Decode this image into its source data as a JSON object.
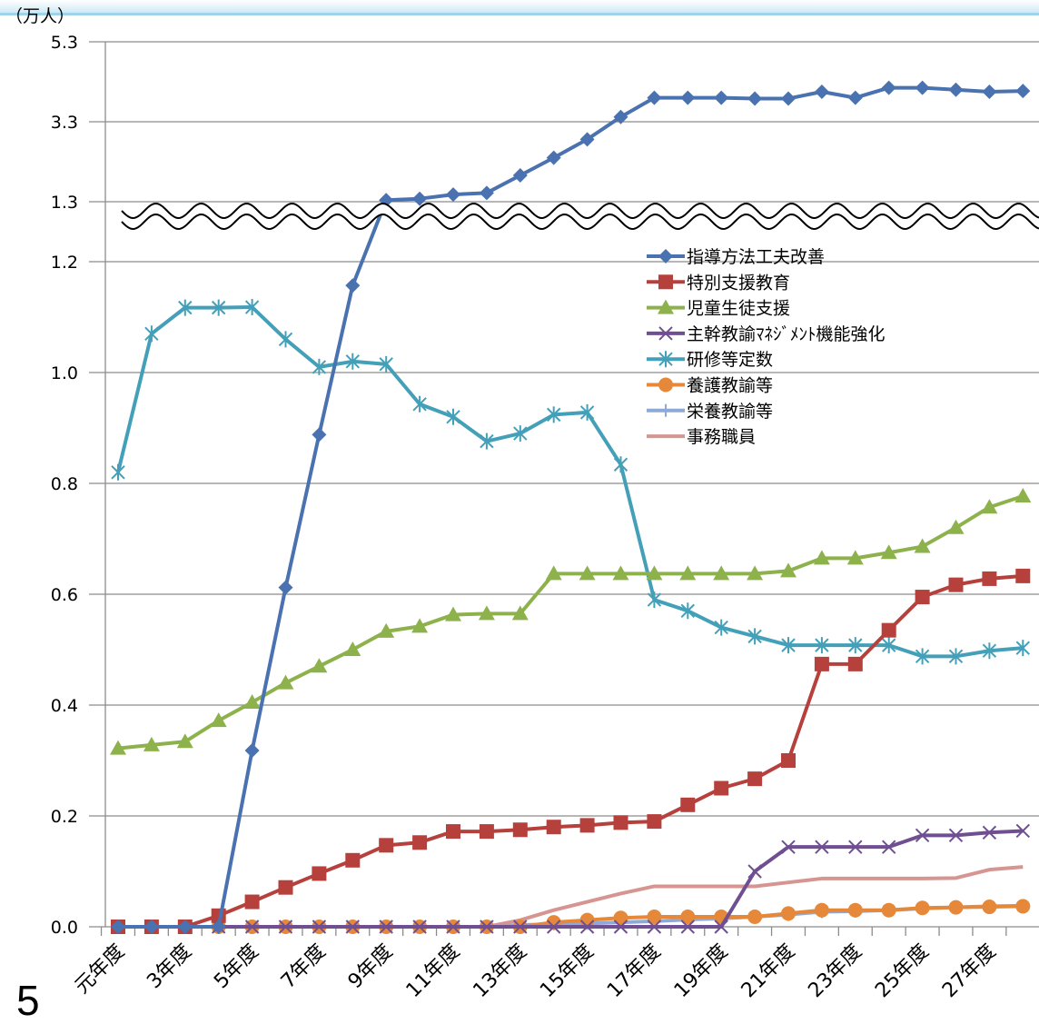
{
  "page_number": "5",
  "chart_data": {
    "type": "line",
    "y_unit": "（万人）",
    "x": [
      "元年度",
      "2年度",
      "3年度",
      "4年度",
      "5年度",
      "6年度",
      "7年度",
      "8年度",
      "9年度",
      "10年度",
      "11年度",
      "12年度",
      "13年度",
      "14年度",
      "15年度",
      "16年度",
      "17年度",
      "18年度",
      "19年度",
      "20年度",
      "21年度",
      "22年度",
      "23年度",
      "24年度",
      "25年度",
      "26年度",
      "27年度",
      "28年度"
    ],
    "x_tick_labels": [
      "元年度",
      "3年度",
      "5年度",
      "7年度",
      "9年度",
      "11年度",
      "13年度",
      "15年度",
      "17年度",
      "19年度",
      "21年度",
      "23年度",
      "25年度",
      "27年度"
    ],
    "y_tick_labels": [
      "0.0",
      "0.2",
      "0.4",
      "0.6",
      "0.8",
      "1.0",
      "1.2",
      "1.3",
      "3.3",
      "5.3"
    ],
    "axis_break": "between 1.2 and 1.3",
    "legend_position": "upper-right",
    "grid": true,
    "series": [
      {
        "name": "指導方法工夫改善",
        "color": "#4a72b0",
        "marker": "diamond",
        "values": [
          0,
          0,
          0,
          0,
          0.318,
          0.612,
          0.888,
          1.157,
          1.34,
          1.375,
          1.48,
          1.52,
          1.96,
          2.4,
          2.86,
          3.42,
          3.9,
          3.9,
          3.9,
          3.88,
          3.88,
          4.05,
          3.9,
          4.15,
          4.15,
          4.1,
          4.05,
          4.07
        ]
      },
      {
        "name": "特別支援教育",
        "color": "#b6403c",
        "marker": "square",
        "values": [
          0,
          0,
          0,
          0.02,
          0.045,
          0.071,
          0.096,
          0.12,
          0.147,
          0.152,
          0.172,
          0.172,
          0.175,
          0.18,
          0.183,
          0.188,
          0.19,
          0.22,
          0.25,
          0.267,
          0.3,
          0.474,
          0.474,
          0.535,
          0.595,
          0.617,
          0.628,
          0.633
        ]
      },
      {
        "name": "児童生徒支援",
        "color": "#8db24b",
        "marker": "triangle",
        "values": [
          0.322,
          0.328,
          0.334,
          0.372,
          0.405,
          0.44,
          0.47,
          0.5,
          0.533,
          0.542,
          0.563,
          0.565,
          0.565,
          0.637,
          0.637,
          0.637,
          0.637,
          0.637,
          0.637,
          0.637,
          0.642,
          0.665,
          0.665,
          0.675,
          0.686,
          0.72,
          0.757,
          0.777
        ]
      },
      {
        "name": "主幹教諭ﾏﾈｼﾞﾒﾝﾄ機能強化",
        "color": "#6f4f92",
        "marker": "x",
        "values": [
          0,
          0,
          0,
          0,
          0,
          0,
          0,
          0,
          0,
          0,
          0,
          0,
          0,
          0,
          0,
          0,
          0,
          0,
          0,
          0.1,
          0.144,
          0.144,
          0.144,
          0.144,
          0.165,
          0.165,
          0.17,
          0.173
        ]
      },
      {
        "name": "研修等定数",
        "color": "#44a0b8",
        "marker": "star",
        "values": [
          0.82,
          1.07,
          1.117,
          1.117,
          1.118,
          1.06,
          1.01,
          1.02,
          1.015,
          0.943,
          0.92,
          0.876,
          0.89,
          0.924,
          0.928,
          0.834,
          0.59,
          0.57,
          0.54,
          0.524,
          0.508,
          0.508,
          0.508,
          0.508,
          0.488,
          0.488,
          0.498,
          0.503
        ]
      },
      {
        "name": "養護教諭等",
        "color": "#e6883a",
        "marker": "circle",
        "values": [
          0,
          0,
          0,
          0,
          0,
          0,
          0,
          0,
          0,
          0,
          0,
          0,
          0,
          0.008,
          0.012,
          0.016,
          0.018,
          0.018,
          0.018,
          0.018,
          0.024,
          0.03,
          0.03,
          0.03,
          0.034,
          0.035,
          0.036,
          0.037
        ]
      },
      {
        "name": "栄養教諭等",
        "color": "#8fa9d6",
        "marker": "plus",
        "values": [
          0,
          0,
          0,
          0,
          0,
          0,
          0,
          0,
          0,
          0,
          0,
          0,
          0.003,
          0.005,
          0.006,
          0.008,
          0.01,
          0.013,
          0.015,
          0.018,
          0.022,
          0.027,
          0.028,
          0.03,
          0.033,
          0.035,
          0.037,
          0.038
        ]
      },
      {
        "name": "事務職員",
        "color": "#d69591",
        "marker": "none",
        "values": [
          0,
          0,
          0,
          0,
          0,
          0,
          0,
          0,
          0,
          0,
          0,
          0,
          0.012,
          0.03,
          0.045,
          0.06,
          0.073,
          0.073,
          0.073,
          0.073,
          0.08,
          0.087,
          0.087,
          0.087,
          0.087,
          0.088,
          0.103,
          0.108
        ]
      }
    ]
  }
}
